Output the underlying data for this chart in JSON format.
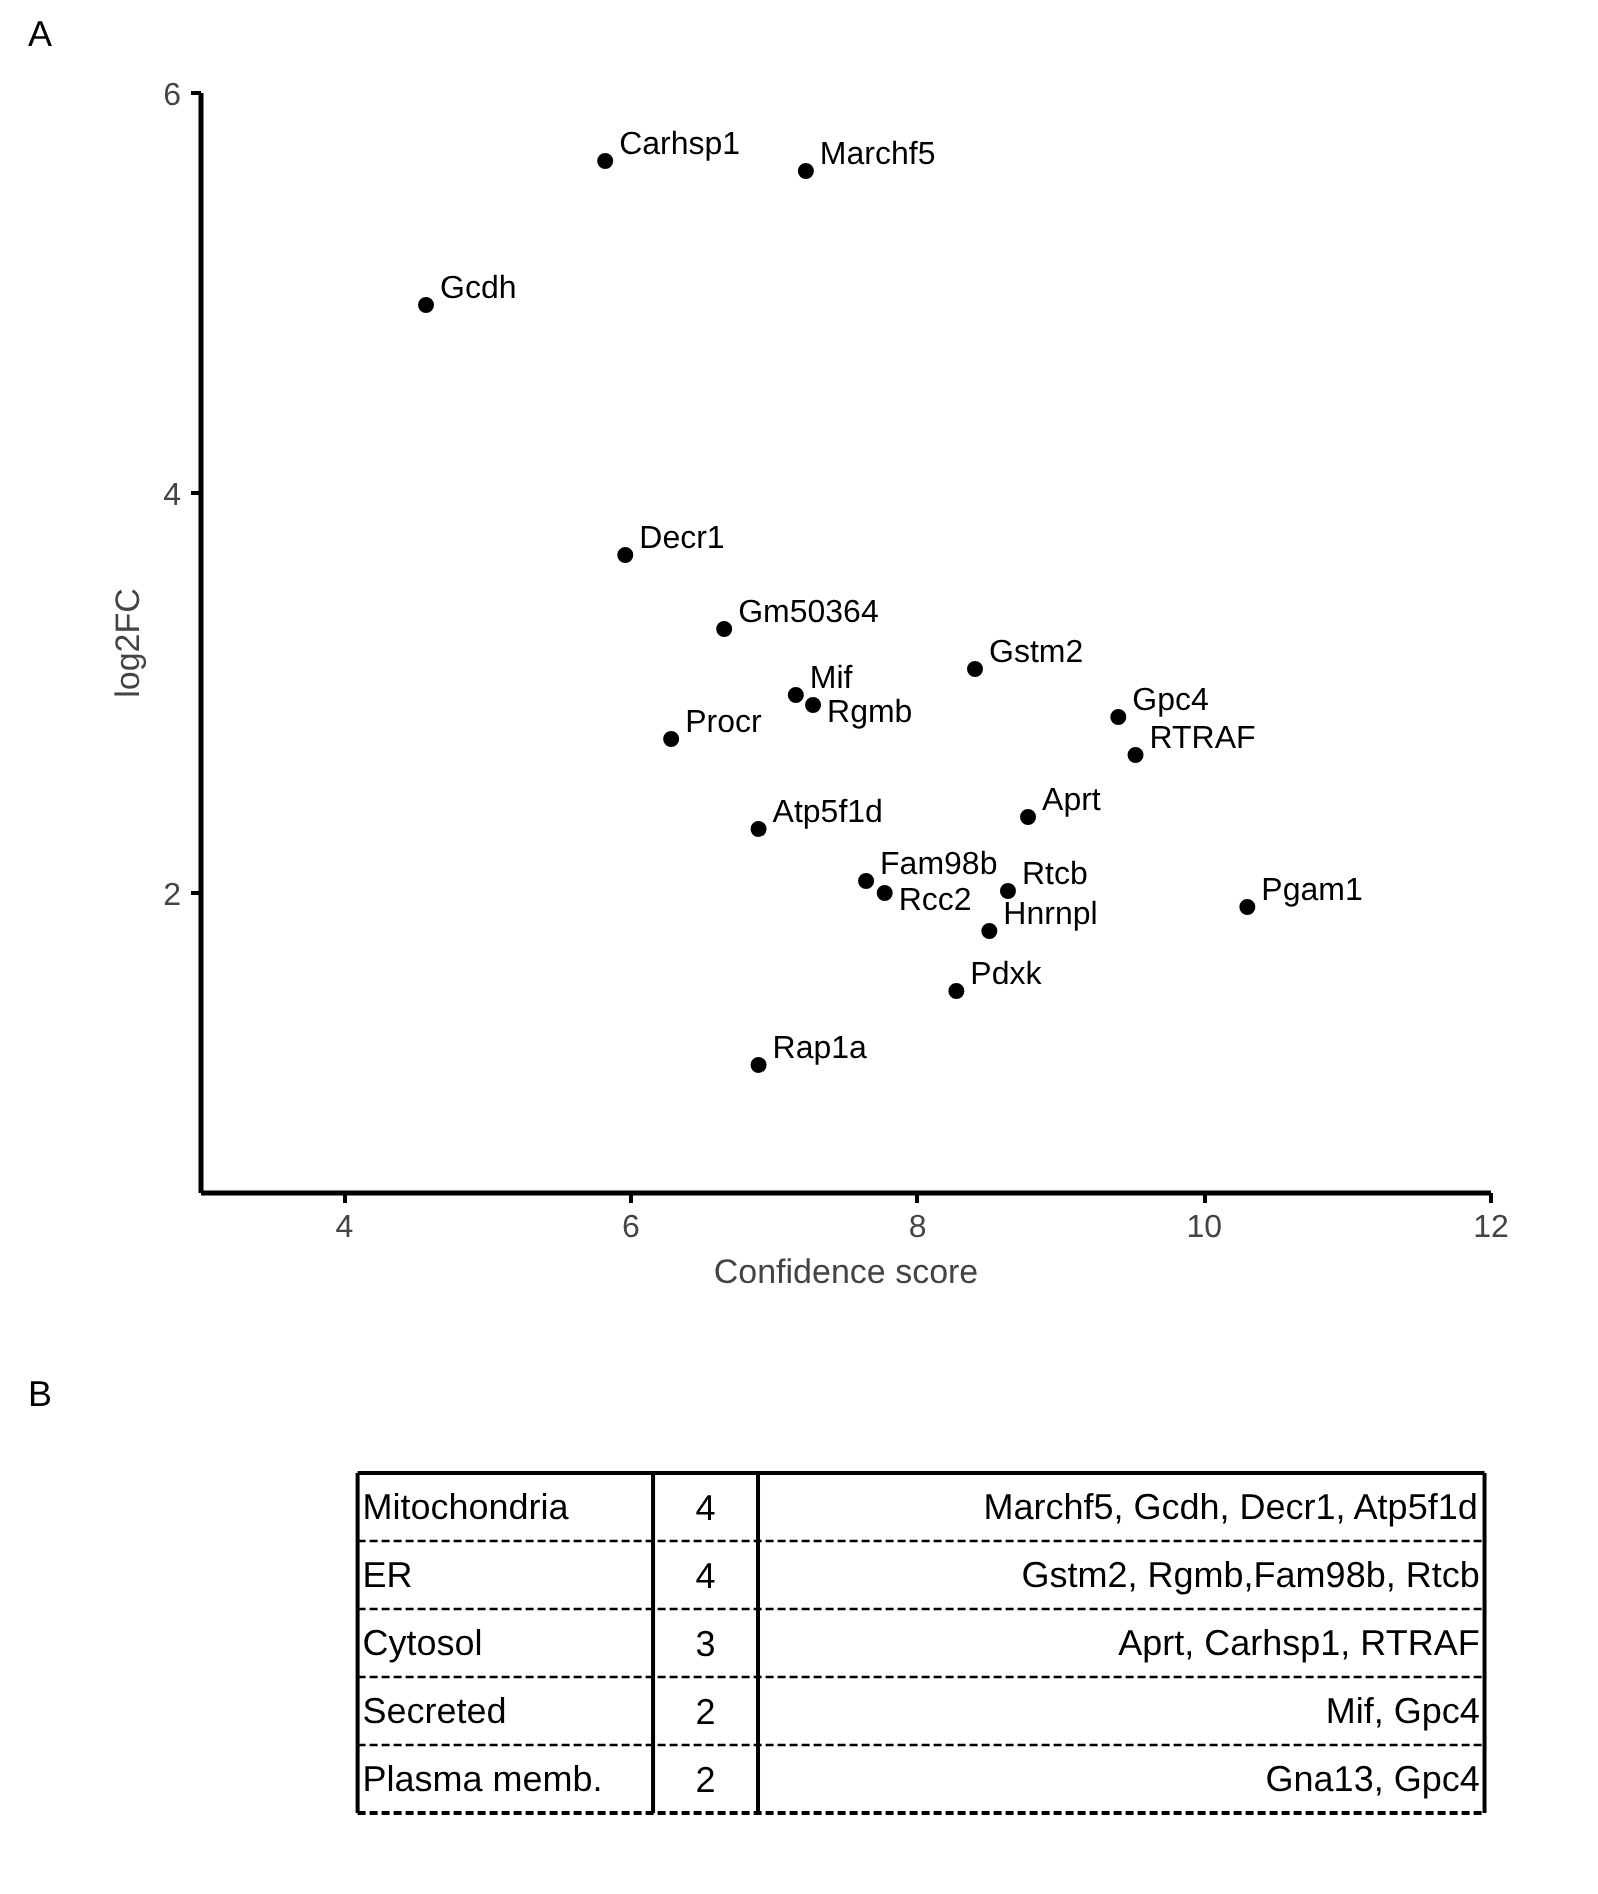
{
  "chart_data": [
    {
      "type": "scatter",
      "title": "A",
      "xlabel": "Confidence score",
      "ylabel": "log2FC",
      "xlim": [
        3,
        12
      ],
      "ylim": [
        0.5,
        6
      ],
      "xticks": [
        4,
        6,
        8,
        10,
        12
      ],
      "yticks": [
        2,
        4,
        6
      ],
      "grid": false,
      "marker": "circle",
      "color": "#000000",
      "x": [
        5.82,
        7.22,
        4.57,
        5.96,
        6.65,
        7.15,
        7.27,
        6.28,
        8.4,
        9.4,
        9.52,
        8.77,
        6.89,
        7.64,
        7.77,
        8.63,
        8.5,
        8.27,
        10.3,
        6.89
      ],
      "values": [
        5.66,
        5.61,
        4.94,
        3.69,
        3.32,
        2.99,
        2.94,
        2.77,
        3.12,
        2.88,
        2.69,
        2.38,
        2.32,
        2.06,
        2.0,
        2.01,
        1.81,
        1.51,
        1.93,
        1.14
      ],
      "annotations": [
        {
          "text": "Carhsp1",
          "x": 5.82,
          "y": 5.66
        },
        {
          "text": "Marchf5",
          "x": 7.22,
          "y": 5.61
        },
        {
          "text": "Gcdh",
          "x": 4.57,
          "y": 4.94
        },
        {
          "text": "Decr1",
          "x": 5.96,
          "y": 3.69
        },
        {
          "text": "Gm50364",
          "x": 6.65,
          "y": 3.32
        },
        {
          "text": "Mif",
          "x": 7.15,
          "y": 2.99
        },
        {
          "text": "Rgmb",
          "x": 7.27,
          "y": 2.94
        },
        {
          "text": "Procr",
          "x": 6.28,
          "y": 2.77
        },
        {
          "text": "Gstm2",
          "x": 8.4,
          "y": 3.12
        },
        {
          "text": "Gpc4",
          "x": 9.4,
          "y": 2.88
        },
        {
          "text": "RTRAF",
          "x": 9.52,
          "y": 2.69
        },
        {
          "text": "Aprt",
          "x": 8.77,
          "y": 2.38
        },
        {
          "text": "Atp5f1d",
          "x": 6.89,
          "y": 2.32
        },
        {
          "text": "Fam98b",
          "x": 7.64,
          "y": 2.06
        },
        {
          "text": "Rcc2",
          "x": 7.77,
          "y": 2.0
        },
        {
          "text": "Rtcb",
          "x": 8.63,
          "y": 2.01
        },
        {
          "text": "Hnrnpl",
          "x": 8.5,
          "y": 1.81
        },
        {
          "text": "Pdxk",
          "x": 8.27,
          "y": 1.51
        },
        {
          "text": "Pgam1",
          "x": 10.3,
          "y": 1.93
        },
        {
          "text": "Rap1a",
          "x": 6.89,
          "y": 1.14
        }
      ]
    },
    {
      "type": "other",
      "title": "B",
      "categories": [
        "Mitochondria",
        "ER",
        "Cytosol",
        "Secreted",
        "Plasma memb."
      ],
      "values": [
        4,
        4,
        3,
        2,
        2
      ],
      "data_labels": true,
      "annotations": [
        "Marchf5, Gcdh, Decr1, Atp5f1d",
        "Gstm2, Rgmb,Fam98b, Rtcb",
        "Aprt, Carhsp1, RTRAF",
        "Mif, Gpc4",
        "Gna13, Gpc4"
      ]
    }
  ]
}
